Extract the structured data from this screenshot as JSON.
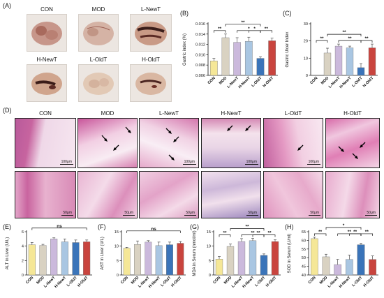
{
  "panels": {
    "A": "(A)",
    "B": "(B)",
    "C": "(C)",
    "D": "(D)",
    "E": "(E)",
    "F": "(F)",
    "G": "(G)",
    "H": "(H)"
  },
  "groups": [
    "CON",
    "MOD",
    "L-NewT",
    "H-NewT",
    "L-OldT",
    "H-OldT"
  ],
  "colors": [
    "#f5e797",
    "#d9d2c2",
    "#cbb9dc",
    "#a9c6e2",
    "#3a74b9",
    "#c9443e"
  ],
  "scale_bars": {
    "low_mag": "100μm",
    "high_mag": "50μm"
  },
  "chart_data": [
    {
      "id": "B",
      "type": "bar",
      "ylabel": "Gastric index (%)",
      "ylim": [
        0.006,
        0.016
      ],
      "yticks": [
        "0.006",
        "0.008",
        "0.010",
        "0.012",
        "0.014",
        "0.016"
      ],
      "categories": [
        "CON",
        "MOD",
        "L-NewT",
        "H-NewT",
        "L-OldT",
        "H-OldT"
      ],
      "values": [
        0.0088,
        0.0133,
        0.0124,
        0.0126,
        0.0093,
        0.0127
      ],
      "errors": [
        0.0005,
        0.0007,
        0.0009,
        0.0008,
        0.0003,
        0.0005
      ],
      "annotations": [
        {
          "from": 0,
          "to": 1,
          "level": 0,
          "text": "**"
        },
        {
          "from": 1,
          "to": 4,
          "level": 1,
          "text": "**"
        },
        {
          "from": 2,
          "to": 4,
          "level": 0,
          "text": "*"
        },
        {
          "from": 3,
          "to": 4,
          "level": 0,
          "text": "*"
        },
        {
          "from": 4,
          "to": 5,
          "level": 0,
          "text": "**"
        }
      ]
    },
    {
      "id": "C",
      "type": "bar",
      "ylabel": "Gastric Ulcer Index",
      "ylim": [
        0,
        30
      ],
      "yticks": [
        "0",
        "10",
        "20",
        "30"
      ],
      "categories": [
        "CON",
        "MOD",
        "L-NewT",
        "H-NewT",
        "L-OldT",
        "H-OldT"
      ],
      "values": [
        0,
        13,
        17,
        16,
        4.5,
        16
      ],
      "errors": [
        0,
        2.8,
        1.2,
        1.0,
        2.3,
        2.2
      ],
      "annotations": [
        {
          "from": 0,
          "to": 1,
          "level": 0,
          "text": "**"
        },
        {
          "from": 1,
          "to": 4,
          "level": 1,
          "text": "**"
        },
        {
          "from": 2,
          "to": 4,
          "level": 0,
          "text": "**"
        },
        {
          "from": 4,
          "to": 5,
          "level": 0,
          "text": "**"
        }
      ]
    },
    {
      "id": "E",
      "type": "bar",
      "ylabel": "ALT in Liver (U/L)",
      "ylim": [
        0,
        6
      ],
      "yticks": [
        "0",
        "2",
        "4",
        "6"
      ],
      "categories": [
        "CON",
        "MOD",
        "L-NewT",
        "H-NewT",
        "L-OldT",
        "H-OldT"
      ],
      "values": [
        4.2,
        4.1,
        5.0,
        4.6,
        4.5,
        4.6
      ],
      "errors": [
        0.3,
        0.15,
        0.15,
        0.4,
        0.35,
        0.25
      ],
      "annotations": [
        {
          "from": 0,
          "to": 5,
          "level": 1,
          "text": "ns"
        }
      ]
    },
    {
      "id": "F",
      "type": "bar",
      "ylabel": "AST in Liver (U/L)",
      "ylim": [
        0,
        15
      ],
      "yticks": [
        "0",
        "5",
        "10",
        "15"
      ],
      "categories": [
        "CON",
        "MOD",
        "L-NewT",
        "H-NewT",
        "L-OldT",
        "H-OldT"
      ],
      "values": [
        9.3,
        10.6,
        11.4,
        10.2,
        10.5,
        11.0
      ],
      "errors": [
        0.3,
        1.2,
        0.5,
        1.2,
        0.9,
        0.6
      ],
      "annotations": [
        {
          "from": 0,
          "to": 5,
          "level": 1,
          "text": "ns"
        }
      ]
    },
    {
      "id": "G",
      "type": "bar",
      "ylabel": "MDA in Serum (nmol/ml)",
      "ylim": [
        0,
        15
      ],
      "yticks": [
        "0",
        "5",
        "10",
        "15"
      ],
      "categories": [
        "CON",
        "MOD",
        "L-NewT",
        "H-NewT",
        "L-OldT",
        "H-OldT"
      ],
      "values": [
        5.5,
        9.9,
        11.6,
        11.9,
        6.8,
        11.6
      ],
      "errors": [
        0.9,
        0.8,
        1.0,
        0.8,
        0.5,
        0.6
      ],
      "annotations": [
        {
          "from": 0,
          "to": 1,
          "level": 0,
          "text": "**"
        },
        {
          "from": 1,
          "to": 4,
          "level": 1,
          "text": "**"
        },
        {
          "from": 2,
          "to": 4,
          "level": 0,
          "text": "**"
        },
        {
          "from": 3,
          "to": 4,
          "level": 0,
          "text": "**"
        },
        {
          "from": 4,
          "to": 5,
          "level": 0,
          "text": "**"
        }
      ]
    },
    {
      "id": "H",
      "type": "bar",
      "ylabel": "SOD in Serum (U/ml)",
      "ylim": [
        40,
        65
      ],
      "yticks": [
        "40",
        "45",
        "50",
        "55",
        "60",
        "65"
      ],
      "categories": [
        "CON",
        "MOD",
        "L-NewT",
        "H-NewT",
        "L-OldT",
        "H-OldT"
      ],
      "values": [
        61.0,
        50.5,
        46.0,
        49.0,
        57.5,
        49.0
      ],
      "errors": [
        0.8,
        1.5,
        3.0,
        2.5,
        0.8,
        2.0
      ],
      "annotations": [
        {
          "from": 0,
          "to": 1,
          "level": 0,
          "text": "**"
        },
        {
          "from": 1,
          "to": 4,
          "level": 1,
          "text": "*"
        },
        {
          "from": 2,
          "to": 4,
          "level": 0,
          "text": "**"
        },
        {
          "from": 3,
          "to": 4,
          "level": 0,
          "text": "**"
        },
        {
          "from": 4,
          "to": 5,
          "level": 0,
          "text": "**"
        }
      ]
    }
  ]
}
